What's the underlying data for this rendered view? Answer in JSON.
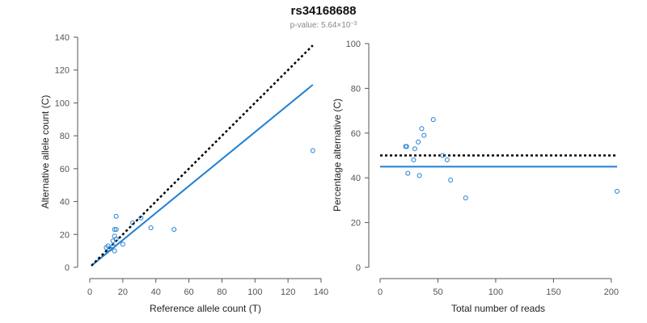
{
  "title": "rs34168688",
  "subtitle_prefix": "p-value: 5.64×10",
  "subtitle_exp": "−3",
  "chart_data": [
    {
      "type": "scatter",
      "xlabel": "Reference allele count (T)",
      "ylabel": "Alternative allele count (C)",
      "xlim": [
        0,
        140
      ],
      "ylim": [
        0,
        140
      ],
      "xticks": [
        0,
        20,
        40,
        60,
        80,
        100,
        120,
        140
      ],
      "yticks": [
        0,
        20,
        40,
        60,
        80,
        100,
        120,
        140
      ],
      "points": [
        [
          10,
          12
        ],
        [
          11,
          13
        ],
        [
          12,
          11
        ],
        [
          14,
          13
        ],
        [
          14,
          16
        ],
        [
          15,
          10
        ],
        [
          15,
          19
        ],
        [
          15,
          23
        ],
        [
          16,
          17
        ],
        [
          16,
          23
        ],
        [
          16,
          31
        ],
        [
          20,
          14
        ],
        [
          26,
          27
        ],
        [
          31,
          30
        ],
        [
          37,
          24
        ],
        [
          51,
          23
        ],
        [
          135,
          71
        ]
      ],
      "lines": [
        {
          "style": "solid",
          "color": "#1f7fd4",
          "x": [
            1,
            135
          ],
          "y": [
            1,
            111
          ]
        },
        {
          "style": "dotted",
          "color": "#000000",
          "x": [
            1,
            135
          ],
          "y": [
            1,
            135
          ]
        }
      ]
    },
    {
      "type": "scatter",
      "xlabel": "Total number of reads",
      "ylabel": "Percentage alternative (C)",
      "xlim": [
        0,
        205
      ],
      "ylim": [
        0,
        100
      ],
      "xticks": [
        0,
        50,
        100,
        150,
        200
      ],
      "yticks": [
        0,
        20,
        40,
        60,
        80,
        100
      ],
      "points": [
        [
          22,
          54
        ],
        [
          23,
          54
        ],
        [
          24,
          42
        ],
        [
          29,
          48
        ],
        [
          30,
          53
        ],
        [
          33,
          56
        ],
        [
          34,
          41
        ],
        [
          36,
          62
        ],
        [
          38,
          59
        ],
        [
          46,
          66
        ],
        [
          54,
          50
        ],
        [
          58,
          48
        ],
        [
          61,
          39
        ],
        [
          74,
          31
        ],
        [
          205,
          34
        ]
      ],
      "lines": [
        {
          "style": "solid",
          "color": "#1f7fd4",
          "x": [
            0,
            205
          ],
          "y": [
            45,
            45
          ]
        },
        {
          "style": "dotted",
          "color": "#000000",
          "x": [
            0,
            205
          ],
          "y": [
            50,
            50
          ]
        }
      ]
    }
  ]
}
